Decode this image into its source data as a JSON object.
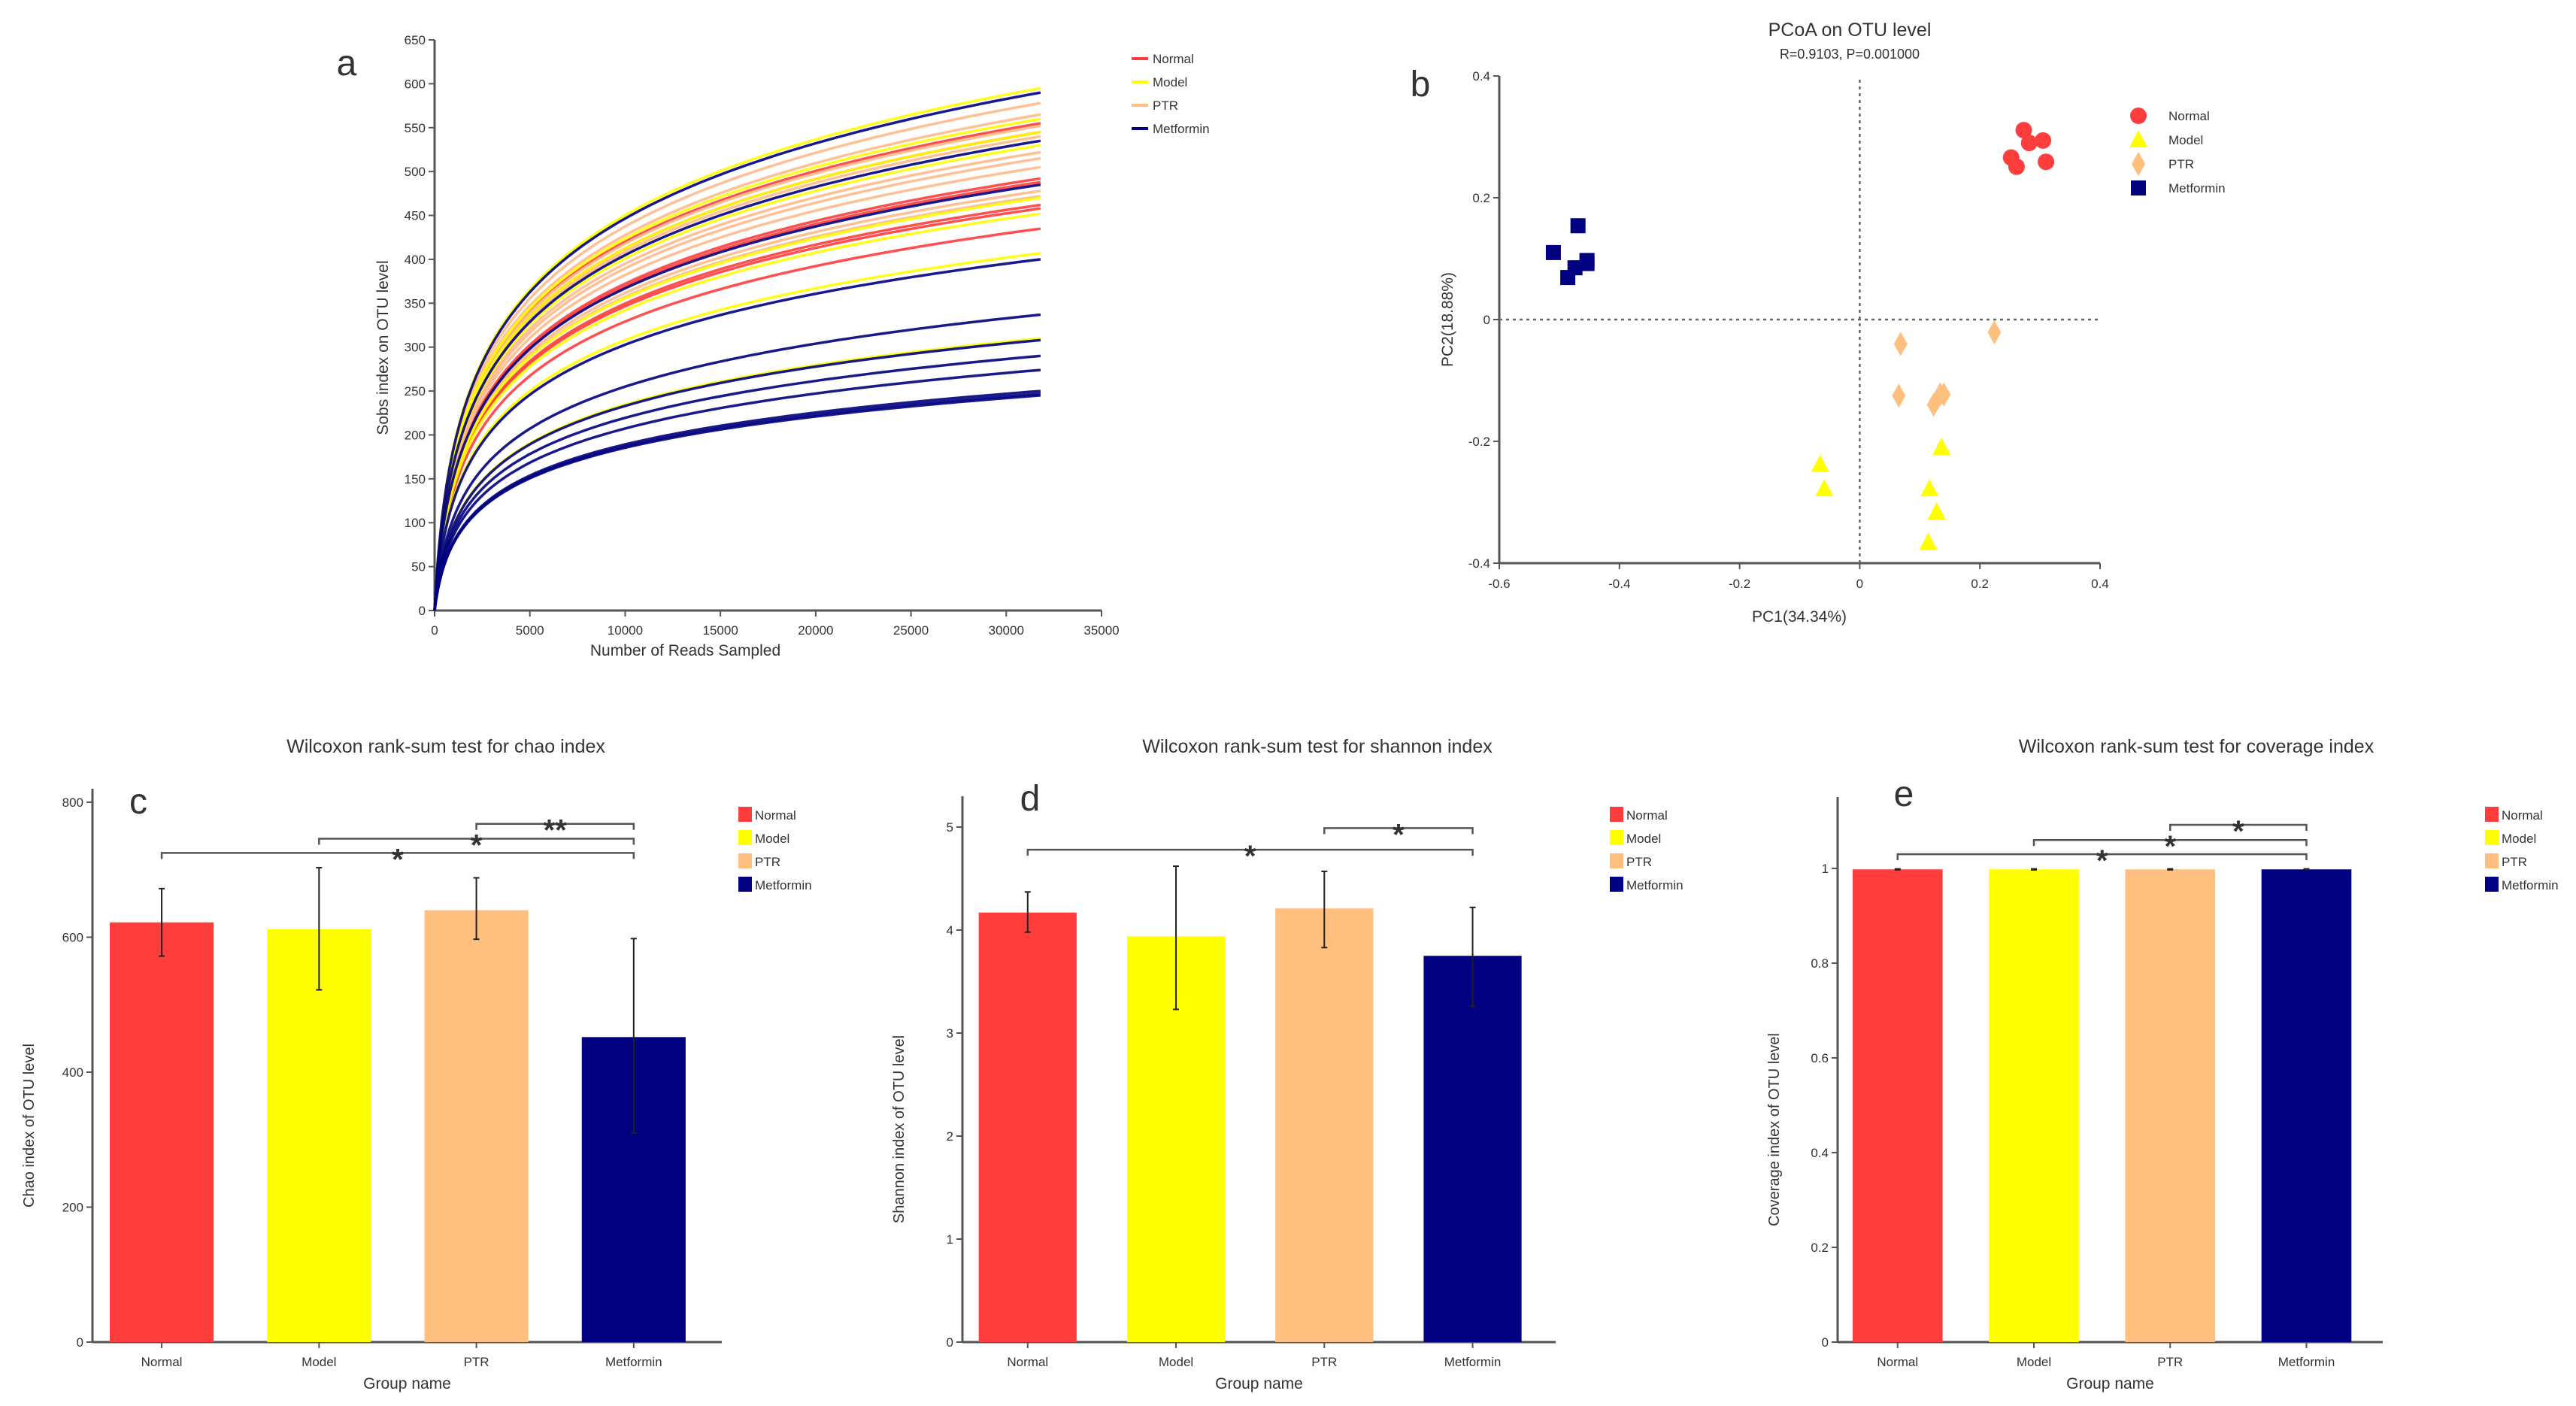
{
  "groups": [
    {
      "name": "Normal",
      "color": "#ff3d3d"
    },
    {
      "name": "Model",
      "color": "#ffff00"
    },
    {
      "name": "PTR",
      "color": "#ffbf7f"
    },
    {
      "name": "Metformin",
      "color": "#000080"
    }
  ],
  "chart_data": [
    {
      "panel": "a",
      "type": "line",
      "title": "",
      "xlabel": "Number of Reads Sampled",
      "ylabel": "Sobs index on OTU level",
      "xlim": [
        0,
        35000
      ],
      "ylim": [
        0,
        650
      ],
      "xticks": [
        "0",
        "5000",
        "10000",
        "15000",
        "20000",
        "25000",
        "30000",
        "35000"
      ],
      "yticks": [
        "0",
        "50",
        "100",
        "150",
        "200",
        "250",
        "300",
        "350",
        "400",
        "450",
        "500",
        "550",
        "600",
        "650"
      ],
      "legend": [
        "Normal",
        "Model",
        "PTR",
        "Metformin"
      ],
      "legend_position": "top-right",
      "x_end": 31800,
      "curves": [
        {
          "group": "Normal",
          "final_sobs": 555
        },
        {
          "group": "Normal",
          "final_sobs": 545
        },
        {
          "group": "Normal",
          "final_sobs": 492
        },
        {
          "group": "Normal",
          "final_sobs": 488
        },
        {
          "group": "Normal",
          "final_sobs": 462
        },
        {
          "group": "Normal",
          "final_sobs": 458
        },
        {
          "group": "Normal",
          "final_sobs": 435
        },
        {
          "group": "PTR",
          "final_sobs": 578
        },
        {
          "group": "PTR",
          "final_sobs": 565
        },
        {
          "group": "PTR",
          "final_sobs": 552
        },
        {
          "group": "PTR",
          "final_sobs": 540
        },
        {
          "group": "PTR",
          "final_sobs": 522
        },
        {
          "group": "PTR",
          "final_sobs": 515
        },
        {
          "group": "PTR",
          "final_sobs": 505
        },
        {
          "group": "PTR",
          "final_sobs": 478
        },
        {
          "group": "PTR",
          "final_sobs": 472
        },
        {
          "group": "Model",
          "final_sobs": 595
        },
        {
          "group": "Model",
          "final_sobs": 560
        },
        {
          "group": "Model",
          "final_sobs": 545
        },
        {
          "group": "Model",
          "final_sobs": 530
        },
        {
          "group": "Model",
          "final_sobs": 470
        },
        {
          "group": "Model",
          "final_sobs": 452
        },
        {
          "group": "Model",
          "final_sobs": 407
        },
        {
          "group": "Model",
          "final_sobs": 310
        },
        {
          "group": "Metformin",
          "final_sobs": 590
        },
        {
          "group": "Metformin",
          "final_sobs": 535
        },
        {
          "group": "Metformin",
          "final_sobs": 485
        },
        {
          "group": "Metformin",
          "final_sobs": 400
        },
        {
          "group": "Metformin",
          "final_sobs": 337
        },
        {
          "group": "Metformin",
          "final_sobs": 308
        },
        {
          "group": "Metformin",
          "final_sobs": 290
        },
        {
          "group": "Metformin",
          "final_sobs": 274
        },
        {
          "group": "Metformin",
          "final_sobs": 250
        },
        {
          "group": "Metformin",
          "final_sobs": 247
        },
        {
          "group": "Metformin",
          "final_sobs": 245
        }
      ]
    },
    {
      "panel": "b",
      "type": "scatter",
      "title": "PCoA on OTU level",
      "subtitle": "R=0.9103, P=0.001000",
      "xlabel": "PC1(34.34%)",
      "ylabel": "PC2(18.88%)",
      "xlim": [
        -0.6,
        0.4
      ],
      "ylim": [
        -0.4,
        0.4
      ],
      "xticks": [
        "-0.6",
        "-0.4",
        "-0.2",
        "0",
        "0.2",
        "0.4"
      ],
      "yticks": [
        "-0.4",
        "-0.2",
        "0",
        "0.2",
        "0.4"
      ],
      "legend": [
        "Normal",
        "Model",
        "PTR",
        "Metformin"
      ],
      "legend_position": "top-right",
      "reference_lines": "dashed at x=0 and y=0",
      "series": [
        {
          "name": "Normal",
          "marker": "circle",
          "points": [
            [
              0.273,
              0.311
            ],
            [
              0.282,
              0.29
            ],
            [
              0.305,
              0.294
            ],
            [
              0.252,
              0.266
            ],
            [
              0.261,
              0.251
            ],
            [
              0.31,
              0.259
            ]
          ]
        },
        {
          "name": "Model",
          "marker": "triangle",
          "points": [
            [
              -0.066,
              -0.238
            ],
            [
              -0.059,
              -0.278
            ],
            [
              0.136,
              -0.21
            ],
            [
              0.116,
              -0.278
            ],
            [
              0.128,
              -0.316
            ],
            [
              0.114,
              -0.366
            ]
          ]
        },
        {
          "name": "PTR",
          "marker": "diamond",
          "points": [
            [
              0.068,
              -0.04
            ],
            [
              0.224,
              -0.021
            ],
            [
              0.065,
              -0.125
            ],
            [
              0.134,
              -0.123
            ],
            [
              0.14,
              -0.123
            ],
            [
              0.123,
              -0.14
            ]
          ]
        },
        {
          "name": "Metformin",
          "marker": "square",
          "points": [
            [
              -0.469,
              0.154
            ],
            [
              -0.51,
              0.11
            ],
            [
              -0.474,
              0.085
            ],
            [
              -0.454,
              0.097
            ],
            [
              -0.486,
              0.069
            ],
            [
              -0.454,
              0.092
            ]
          ]
        }
      ]
    },
    {
      "panel": "c",
      "type": "bar",
      "title": "Wilcoxon rank-sum test for chao index",
      "xlabel": "Group name",
      "ylabel": "Chao index of OTU level",
      "ylim": [
        0,
        800
      ],
      "yticks": [
        "0",
        "200",
        "400",
        "600",
        "800"
      ],
      "categories": [
        "Normal",
        "Model",
        "PTR",
        "Metformin"
      ],
      "values": [
        622,
        612,
        640,
        452
      ],
      "error_low": [
        572,
        522,
        597,
        310
      ],
      "error_high": [
        672,
        703,
        688,
        598
      ],
      "legend": [
        "Normal",
        "Model",
        "PTR",
        "Metformin"
      ],
      "legend_position": "top-right",
      "significance": [
        {
          "from": "Normal",
          "to": "Metformin",
          "label": "*",
          "level": 725
        },
        {
          "from": "Model",
          "to": "Metformin",
          "label": "*",
          "level": 746
        },
        {
          "from": "PTR",
          "to": "Metformin",
          "label": "**",
          "level": 768
        }
      ]
    },
    {
      "panel": "d",
      "type": "bar",
      "title": "Wilcoxon rank-sum test for shannon index",
      "xlabel": "Group name",
      "ylabel": "Shannon index of OTU level",
      "ylim": [
        0,
        5
      ],
      "yticks": [
        "0",
        "1",
        "2",
        "3",
        "4",
        "5"
      ],
      "categories": [
        "Normal",
        "Model",
        "PTR",
        "Metformin"
      ],
      "values": [
        4.17,
        3.94,
        4.21,
        3.75
      ],
      "error_low": [
        3.98,
        3.23,
        3.83,
        3.26
      ],
      "error_high": [
        4.37,
        4.62,
        4.57,
        4.22
      ],
      "legend": [
        "Normal",
        "Model",
        "PTR",
        "Metformin"
      ],
      "legend_position": "top-right",
      "significance": [
        {
          "from": "Normal",
          "to": "Metformin",
          "label": "*",
          "level": 4.78
        },
        {
          "from": "PTR",
          "to": "Metformin",
          "label": "*",
          "level": 4.99
        }
      ]
    },
    {
      "panel": "e",
      "type": "bar",
      "title": "Wilcoxon rank-sum test for coverage index",
      "xlabel": "Group name",
      "ylabel": "Coverage index of OTU level",
      "ylim": [
        0,
        1
      ],
      "yticks": [
        "0",
        "0.2",
        "0.4",
        "0.6",
        "0.8",
        "1"
      ],
      "categories": [
        "Normal",
        "Model",
        "PTR",
        "Metformin"
      ],
      "values": [
        0.998,
        0.998,
        0.998,
        0.998
      ],
      "error_low": [
        0.997,
        0.997,
        0.997,
        0.997
      ],
      "error_high": [
        0.999,
        0.999,
        0.999,
        0.999
      ],
      "legend": [
        "Normal",
        "Model",
        "PTR",
        "Metformin"
      ],
      "legend_position": "top-right",
      "significance": [
        {
          "from": "Normal",
          "to": "Metformin",
          "label": "*",
          "level": 1.03
        },
        {
          "from": "Model",
          "to": "Metformin",
          "label": "*",
          "level": 1.06
        },
        {
          "from": "PTR",
          "to": "Metformin",
          "label": "*",
          "level": 1.092
        }
      ]
    }
  ]
}
